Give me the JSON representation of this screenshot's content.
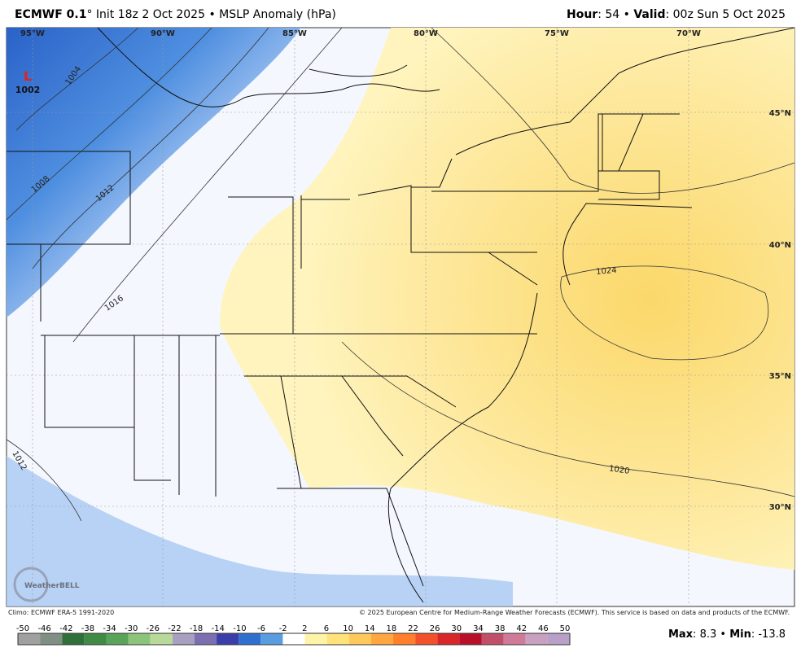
{
  "header": {
    "model": "ECMWF 0.1",
    "description": "° Init 18z 2 Oct 2025 • MSLP Anomaly (hPa)",
    "hour_label": "Hour",
    "hour_value": ": 54 • ",
    "valid_label": "Valid",
    "valid_value": ": 00z Sun 5 Oct 2025"
  },
  "map": {
    "longitudes": [
      "95°W",
      "90°W",
      "85°W",
      "80°W",
      "75°W",
      "70°W"
    ],
    "latitudes": [
      "45°N",
      "40°N",
      "35°N",
      "30°N"
    ],
    "contours": [
      "1004",
      "1008",
      "1012",
      "1016",
      "1020",
      "1024",
      "1012"
    ],
    "low": {
      "symbol": "L",
      "pressure": "1002"
    },
    "logo": "WeatherBELL"
  },
  "footer": {
    "climo": "Climo: ECMWF ERA-5 1991-2020",
    "copyright": "© 2025 European Centre for Medium-Range Weather Forecasts (ECMWF). This service is based on data and products of the ECMWF."
  },
  "colorbar": {
    "ticks": [
      -50,
      -46,
      -42,
      -38,
      -34,
      -30,
      -26,
      -22,
      -18,
      -14,
      -10,
      -6,
      -2,
      2,
      6,
      10,
      14,
      18,
      22,
      26,
      30,
      34,
      38,
      42,
      46,
      50
    ],
    "colors": [
      "#a0a0a0",
      "#7f8f84",
      "#2f6f3a",
      "#3f8a45",
      "#5aa35a",
      "#8cc47a",
      "#b9d99a",
      "#a8a0c0",
      "#7b6fb0",
      "#3b3ea8",
      "#2f6fd0",
      "#5a9ce0",
      "#ffffff",
      "#fff3a8",
      "#ffe27a",
      "#ffc85a",
      "#ffa640",
      "#ff7f2a",
      "#f2502a",
      "#d8262a",
      "#b8102a",
      "#c0506a",
      "#d07a9a",
      "#c8a0c0",
      "#b8a0c8"
    ]
  },
  "stats": {
    "max_label": "Max",
    "max": 8.3,
    "min_label": "Min",
    "min": -13.8
  }
}
